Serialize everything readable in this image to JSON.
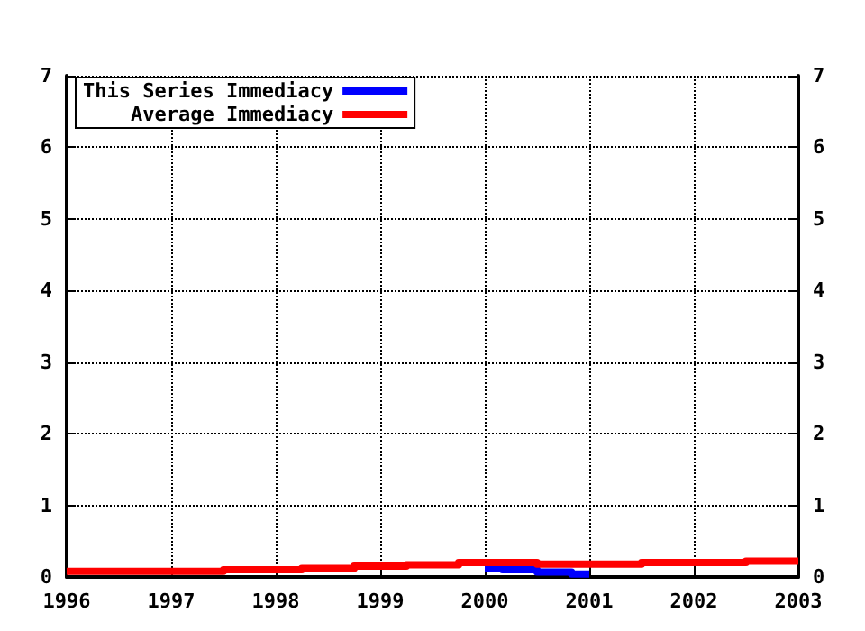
{
  "chart_data": {
    "type": "step",
    "x": [
      1996,
      1997.5,
      1998.25,
      1998.75,
      1999.25,
      1999.75,
      2000.5,
      2001.5,
      2002.5,
      2003
    ],
    "series": [
      {
        "name": "This Series Immediacy",
        "color": "#0000ff",
        "x": [
          2000,
          2000.17,
          2000.5,
          2000.83,
          2001
        ],
        "values": [
          0.12,
          0.1,
          0.07,
          0.04,
          0.04
        ]
      },
      {
        "name": "Average Immediacy",
        "color": "#ff0000",
        "values": [
          0.08,
          0.1,
          0.12,
          0.15,
          0.17,
          0.2,
          0.18,
          0.2,
          0.22,
          0.22
        ]
      }
    ],
    "xlim": [
      1996,
      2003
    ],
    "xticks": [
      1996,
      1997,
      1998,
      1999,
      2000,
      2001,
      2002,
      2003
    ],
    "ylim": [
      0,
      7
    ],
    "yticks": [
      0,
      1,
      2,
      3,
      4,
      5,
      6,
      7
    ],
    "y2lim": [
      0,
      7
    ],
    "y2ticks": [
      0,
      1,
      2,
      3,
      4,
      5,
      6,
      7
    ],
    "grid": true,
    "legend": "top left",
    "marker": "none",
    "line_style": "solid"
  }
}
